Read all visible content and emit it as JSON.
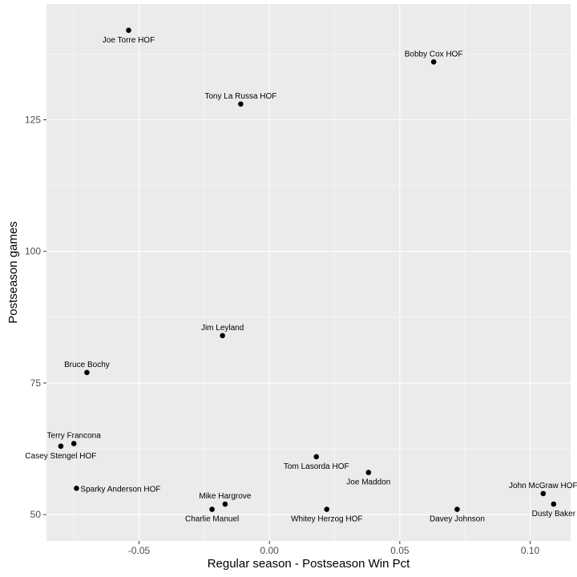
{
  "chart_data": {
    "type": "scatter",
    "title": "",
    "xlabel": "Regular season - Postseason Win Pct",
    "ylabel": "Postseason games",
    "xlim": [
      -0.0855,
      0.1155
    ],
    "ylim": [
      45,
      147
    ],
    "x_ticks": [
      -0.05,
      0.0,
      0.05,
      0.1
    ],
    "x_tick_labels": [
      "-0.05",
      "0.00",
      "0.05",
      "0.10"
    ],
    "y_ticks": [
      50,
      75,
      100,
      125
    ],
    "y_tick_labels": [
      "50",
      "75",
      "100",
      "125"
    ],
    "grid": true,
    "colors": {
      "panel": "#ebebeb",
      "grid": "#ffffff",
      "point": "#000000",
      "tick": "#4d4d4d"
    },
    "points": [
      {
        "label": "Joe Torre HOF",
        "x": -0.054,
        "y": 142,
        "label_pos": "below"
      },
      {
        "label": "Bobby Cox HOF",
        "x": 0.063,
        "y": 136,
        "label_pos": "above"
      },
      {
        "label": "Tony La Russa HOF",
        "x": -0.011,
        "y": 128,
        "label_pos": "above"
      },
      {
        "label": "Jim Leyland",
        "x": -0.018,
        "y": 84,
        "label_pos": "above"
      },
      {
        "label": "Bruce Bochy",
        "x": -0.07,
        "y": 77,
        "label_pos": "above"
      },
      {
        "label": "Terry Francona",
        "x": -0.075,
        "y": 63.5,
        "label_pos": "above"
      },
      {
        "label": "Casey Stengel HOF",
        "x": -0.08,
        "y": 63,
        "label_pos": "below"
      },
      {
        "label": "Tom Lasorda HOF",
        "x": 0.018,
        "y": 61,
        "label_pos": "below"
      },
      {
        "label": "Joe Maddon",
        "x": 0.038,
        "y": 58,
        "label_pos": "below"
      },
      {
        "label": "Sparky Anderson HOF",
        "x": -0.074,
        "y": 55,
        "label_pos": "right"
      },
      {
        "label": "John McGraw HOF",
        "x": 0.105,
        "y": 54,
        "label_pos": "above"
      },
      {
        "label": "Mike Hargrove",
        "x": -0.017,
        "y": 52,
        "label_pos": "above"
      },
      {
        "label": "Dusty Baker",
        "x": 0.109,
        "y": 52,
        "label_pos": "below"
      },
      {
        "label": "Charlie Manuel",
        "x": -0.022,
        "y": 51,
        "label_pos": "below"
      },
      {
        "label": "Whitey Herzog HOF",
        "x": 0.022,
        "y": 51,
        "label_pos": "below"
      },
      {
        "label": "Davey Johnson",
        "x": 0.072,
        "y": 51,
        "label_pos": "below"
      }
    ]
  }
}
